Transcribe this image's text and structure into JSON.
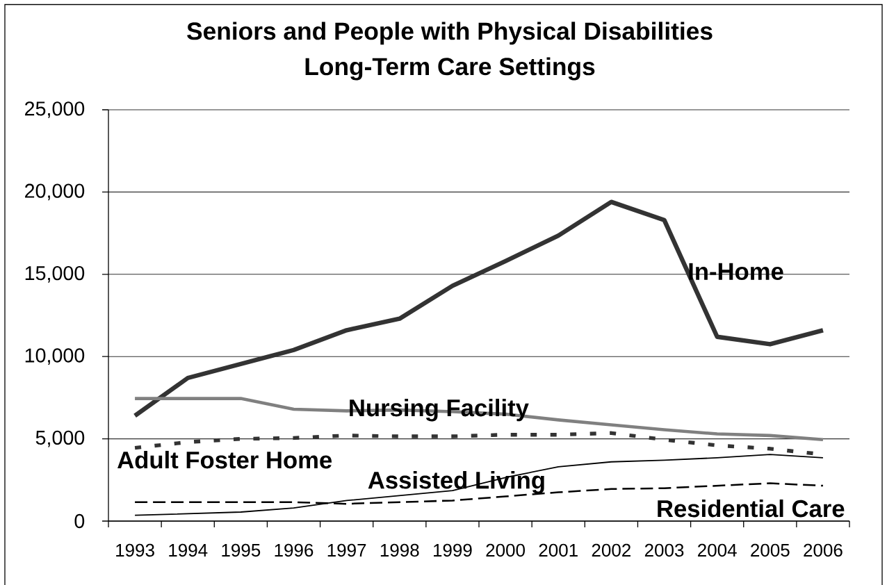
{
  "chart_data": {
    "type": "line",
    "title": "Seniors and People with Physical Disabilities",
    "subtitle": "Long-Term Care Settings",
    "categories": [
      "1993",
      "1994",
      "1995",
      "1996",
      "1997",
      "1998",
      "1999",
      "2000",
      "2001",
      "2002",
      "2003",
      "2004",
      "2005",
      "2006"
    ],
    "series": [
      {
        "name": "In-Home",
        "color": "#333333",
        "line_style": "solid",
        "values": [
          6400,
          8700,
          9550,
          10400,
          11600,
          12300,
          14300,
          15800,
          17350,
          19400,
          18300,
          11200,
          10750,
          11600
        ]
      },
      {
        "name": "Nursing Facility",
        "color": "#808080",
        "line_style": "solid",
        "values": [
          7450,
          7450,
          7450,
          6800,
          6700,
          6750,
          6650,
          6500,
          6150,
          5850,
          5550,
          5300,
          5200,
          4950
        ]
      },
      {
        "name": "Adult Foster Home",
        "color": "#333333",
        "line_style": "dotted",
        "values": [
          4450,
          4800,
          5000,
          5050,
          5200,
          5150,
          5150,
          5250,
          5250,
          5350,
          4950,
          4600,
          4400,
          4050
        ]
      },
      {
        "name": "Assisted Living",
        "color": "#000000",
        "line_style": "solid",
        "values": [
          350,
          450,
          550,
          800,
          1250,
          1550,
          1850,
          2650,
          3300,
          3600,
          3700,
          3850,
          4050,
          3850
        ]
      },
      {
        "name": "Residential Care",
        "color": "#000000",
        "line_style": "dashed",
        "values": [
          1150,
          1150,
          1150,
          1150,
          1050,
          1150,
          1250,
          1500,
          1750,
          1950,
          2000,
          2150,
          2300,
          2150
        ]
      }
    ],
    "ylim": [
      0,
      25000
    ],
    "yticks": [
      0,
      {
        "value": 5000,
        "label": "5,000"
      },
      {
        "value": 10000,
        "label": "10,000"
      },
      {
        "value": 15000,
        "label": "15,000"
      },
      {
        "value": 20000,
        "label": "20,000"
      },
      {
        "value": 25000,
        "label": "25,000"
      }
    ],
    "grid": "y",
    "marker": "none"
  }
}
